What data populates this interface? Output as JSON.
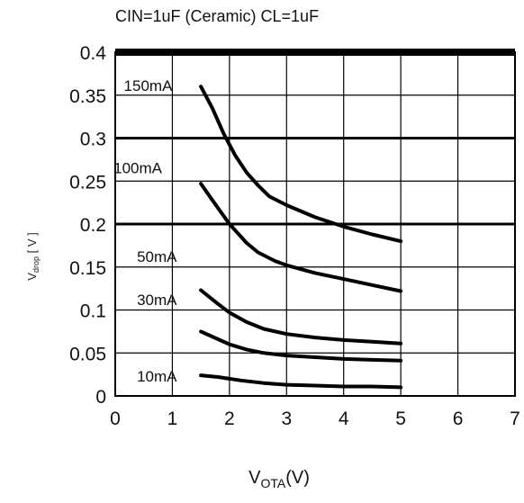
{
  "chart_data": {
    "type": "line",
    "title": "CIN=1uF (Ceramic) CL=1uF",
    "xlabel": "V",
    "xlabel_sub": "OTA",
    "xlabel_suffix": "(V)",
    "ylabel": "V",
    "ylabel_sub": "drop",
    "ylabel_suffix": " [ V ]",
    "xlim": [
      0,
      7
    ],
    "ylim": [
      0,
      0.4
    ],
    "x_ticks": [
      "0",
      "1",
      "2",
      "3",
      "4",
      "5",
      "6",
      "7"
    ],
    "y_ticks": [
      "0",
      "0.05",
      "0.1",
      "0.15",
      "0.2",
      "0.25",
      "0.3",
      "0.35",
      "0.4"
    ],
    "grid": true,
    "series": [
      {
        "name": "150mA",
        "x": [
          1.5,
          1.7,
          1.9,
          2.1,
          2.3,
          2.5,
          2.7,
          3.0,
          3.5,
          4.0,
          4.5,
          5.0
        ],
        "y": [
          0.36,
          0.335,
          0.305,
          0.28,
          0.26,
          0.245,
          0.232,
          0.222,
          0.208,
          0.197,
          0.188,
          0.18
        ]
      },
      {
        "name": "100mA",
        "x": [
          1.5,
          1.7,
          2.0,
          2.3,
          2.5,
          2.8,
          3.0,
          3.5,
          4.0,
          4.5,
          5.0
        ],
        "y": [
          0.247,
          0.228,
          0.2,
          0.178,
          0.167,
          0.157,
          0.152,
          0.143,
          0.136,
          0.129,
          0.122
        ]
      },
      {
        "name": "50mA",
        "x": [
          1.5,
          1.8,
          2.0,
          2.3,
          2.6,
          3.0,
          3.5,
          4.0,
          4.5,
          5.0
        ],
        "y": [
          0.123,
          0.107,
          0.097,
          0.086,
          0.078,
          0.072,
          0.068,
          0.065,
          0.063,
          0.061
        ]
      },
      {
        "name": "30mA",
        "x": [
          1.5,
          1.8,
          2.0,
          2.3,
          2.6,
          3.0,
          3.5,
          4.0,
          4.5,
          5.0
        ],
        "y": [
          0.075,
          0.066,
          0.06,
          0.054,
          0.05,
          0.047,
          0.045,
          0.043,
          0.042,
          0.041
        ]
      },
      {
        "name": "10mA",
        "x": [
          1.5,
          1.8,
          2.2,
          2.6,
          3.0,
          3.5,
          4.0,
          4.5,
          5.0
        ],
        "y": [
          0.024,
          0.022,
          0.018,
          0.015,
          0.013,
          0.012,
          0.011,
          0.011,
          0.01
        ]
      }
    ]
  }
}
